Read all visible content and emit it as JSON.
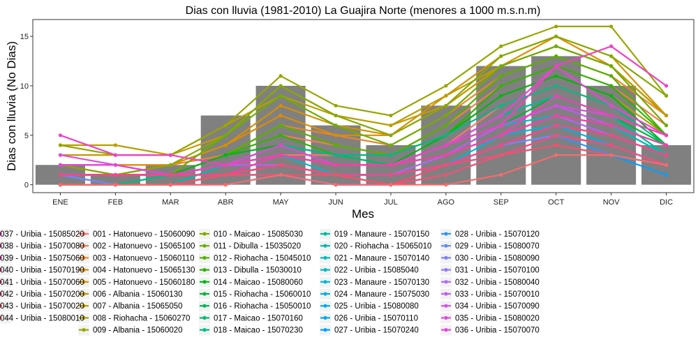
{
  "chart_data": {
    "type": "bar+line",
    "title": "Dias con lluvia (1981-2010) La Guajira Norte (menores a 1000 m.s.n.m)",
    "xlabel": "Mes",
    "ylabel": "Dias con lluvia (No Dias)",
    "categories": [
      "ENE",
      "FEB",
      "MAR",
      "ABR",
      "MAY",
      "JUN",
      "JUL",
      "AGO",
      "SEP",
      "OCT",
      "NOV",
      "DIC"
    ],
    "ylim": [
      -0.8,
      16.7
    ],
    "yticks": [
      "0",
      "5",
      "10",
      "15"
    ],
    "grid": false,
    "legend_position": "bottom",
    "bar_color": "#808080",
    "bars": [
      2,
      1,
      2,
      7,
      10,
      6,
      4,
      8,
      12,
      13,
      10,
      4
    ],
    "series": [
      {
        "name": "001 - Hatonuevo - 15060090",
        "color": "#F8766D",
        "values": [
          1,
          1,
          1,
          2,
          3,
          3,
          2,
          4,
          8,
          10,
          8,
          5
        ]
      },
      {
        "name": "002 - Hatonuevo - 15065100",
        "color": "#F07E4F",
        "values": [
          2,
          2,
          2,
          3,
          5,
          4,
          3,
          6,
          10,
          12,
          10,
          6
        ]
      },
      {
        "name": "003 - Hatonuevo - 15060110",
        "color": "#E8852B",
        "values": [
          1,
          1,
          2,
          3,
          6,
          5,
          4,
          7,
          11,
          13,
          11,
          7
        ]
      },
      {
        "name": "004 - Hatonuevo - 15065130",
        "color": "#DF8C00",
        "values": [
          2,
          2,
          2,
          4,
          7,
          5,
          5,
          8,
          12,
          15,
          12,
          7
        ]
      },
      {
        "name": "005 - Hatonuevo - 15060180",
        "color": "#D29200",
        "values": [
          1,
          1,
          2,
          4,
          8,
          6,
          5,
          9,
          13,
          15,
          13,
          7
        ]
      },
      {
        "name": "006 - Albania - 15060130",
        "color": "#C69800",
        "values": [
          3,
          3,
          3,
          5,
          10,
          7,
          6,
          8,
          12,
          14,
          12,
          7
        ]
      },
      {
        "name": "007 - Albania - 15065050",
        "color": "#B89E00",
        "values": [
          4,
          4,
          3,
          6,
          9,
          7,
          6,
          9,
          12,
          14,
          12,
          7
        ]
      },
      {
        "name": "008 - Riohacha - 15060270",
        "color": "#A8A200",
        "values": [
          2,
          1,
          1,
          3,
          6,
          4,
          3,
          5,
          9,
          11,
          9,
          5
        ]
      },
      {
        "name": "009 - Albania - 15060020",
        "color": "#97A600",
        "values": [
          4,
          3,
          3,
          6,
          11,
          8,
          7,
          10,
          14,
          16,
          16,
          9
        ]
      },
      {
        "name": "010 - Maicao - 15085030",
        "color": "#84AA00",
        "values": [
          2,
          1,
          2,
          5,
          10,
          7,
          5,
          8,
          13,
          15,
          13,
          9
        ]
      },
      {
        "name": "011 - Dibulla - 15035020",
        "color": "#6EAD00",
        "values": [
          1,
          1,
          1,
          5,
          9,
          6,
          4,
          7,
          12,
          14,
          12,
          6
        ]
      },
      {
        "name": "012 - Riohacha - 15045010",
        "color": "#55B000",
        "values": [
          1,
          1,
          1,
          3,
          6,
          4,
          3,
          6,
          11,
          13,
          11,
          5
        ]
      },
      {
        "name": "013 - Dibulla - 15030010",
        "color": "#2EB300",
        "values": [
          1,
          1,
          1,
          3,
          5,
          3,
          3,
          5,
          10,
          12,
          10,
          5
        ]
      },
      {
        "name": "014 - Maicao - 15080060",
        "color": "#00B513",
        "values": [
          1,
          1,
          1,
          3,
          4,
          3,
          2,
          5,
          9,
          11,
          9,
          4
        ]
      },
      {
        "name": "015 - Riohacha - 15060010",
        "color": "#00B63A",
        "values": [
          0,
          0,
          0,
          2,
          4,
          2,
          2,
          4,
          6,
          9,
          7,
          4
        ]
      },
      {
        "name": "016 - Riohacha - 15050010",
        "color": "#00B757",
        "values": [
          1,
          1,
          1,
          2,
          3,
          2,
          2,
          3,
          6,
          8,
          6,
          3
        ]
      },
      {
        "name": "017 - Maicao - 15070160",
        "color": "#00B86F",
        "values": [
          0,
          0,
          1,
          2,
          4,
          3,
          2,
          4,
          7,
          9,
          7,
          3
        ]
      },
      {
        "name": "018 - Maicao - 15070230",
        "color": "#00B985",
        "values": [
          1,
          0,
          1,
          2,
          4,
          3,
          3,
          5,
          8,
          10,
          8,
          4
        ]
      },
      {
        "name": "019 - Manaure - 15070150",
        "color": "#00BA99",
        "values": [
          1,
          1,
          1,
          2,
          3,
          2,
          2,
          4,
          7,
          9,
          7,
          3
        ]
      },
      {
        "name": "020 - Riohacha - 15065010",
        "color": "#00BAAB",
        "values": [
          0,
          0,
          0,
          2,
          4,
          2,
          2,
          3,
          6,
          8,
          6,
          4
        ]
      },
      {
        "name": "021 - Manaure - 15070140",
        "color": "#00BABB",
        "values": [
          1,
          1,
          1,
          2,
          3,
          2,
          2,
          3,
          6,
          7,
          6,
          3
        ]
      },
      {
        "name": "022 - Uribia - 15085040",
        "color": "#00B8CA",
        "values": [
          0,
          0,
          0,
          1,
          3,
          1,
          1,
          3,
          5,
          7,
          5,
          3
        ]
      },
      {
        "name": "023 - Manaure - 15070130",
        "color": "#00B5D7",
        "values": [
          1,
          0,
          0,
          1,
          2,
          1,
          1,
          2,
          5,
          6,
          5,
          3
        ]
      },
      {
        "name": "024 - Manaure - 15075030",
        "color": "#00B1E3",
        "values": [
          0,
          0,
          0,
          1,
          2,
          1,
          1,
          2,
          4,
          6,
          4,
          2
        ]
      },
      {
        "name": "025 - Uribia - 15080080",
        "color": "#00ACEE",
        "values": [
          0,
          0,
          0,
          1,
          2,
          1,
          1,
          2,
          4,
          5,
          4,
          2
        ]
      },
      {
        "name": "026 - Uribia - 15070110",
        "color": "#00A6F7",
        "values": [
          0,
          0,
          0,
          1,
          1,
          0,
          0,
          1,
          3,
          5,
          4,
          2
        ]
      },
      {
        "name": "027 - Uribia - 15070240",
        "color": "#009FFF",
        "values": [
          0,
          0,
          0,
          1,
          1,
          1,
          0,
          1,
          3,
          4,
          3,
          1
        ]
      },
      {
        "name": "028 - Uribia - 15070120",
        "color": "#2D96FF",
        "values": [
          0,
          0,
          0,
          1,
          2,
          1,
          1,
          2,
          3,
          5,
          3,
          2
        ]
      },
      {
        "name": "029 - Uribia - 15080070",
        "color": "#5B8CFF",
        "values": [
          0,
          0,
          0,
          0,
          1,
          0,
          0,
          1,
          3,
          4,
          3,
          2
        ]
      },
      {
        "name": "030 - Uribia - 15080090",
        "color": "#7C81FF",
        "values": [
          1,
          0,
          0,
          1,
          2,
          1,
          1,
          2,
          4,
          5,
          4,
          2
        ]
      },
      {
        "name": "031 - Uribia - 15070100",
        "color": "#9775FF",
        "values": [
          1,
          1,
          1,
          1,
          2,
          1,
          1,
          2,
          4,
          6,
          5,
          3
        ]
      },
      {
        "name": "032 - Uribia - 15080040",
        "color": "#AE69FF",
        "values": [
          0,
          0,
          0,
          1,
          1,
          0,
          0,
          1,
          3,
          5,
          4,
          2
        ]
      },
      {
        "name": "033 - Uribia - 15070010",
        "color": "#C05DF8",
        "values": [
          1,
          1,
          1,
          2,
          2,
          1,
          1,
          3,
          5,
          7,
          5,
          3
        ]
      },
      {
        "name": "034 - Uribia - 15070090",
        "color": "#D053EF",
        "values": [
          2,
          2,
          1,
          2,
          3,
          2,
          2,
          3,
          6,
          8,
          6,
          4
        ]
      },
      {
        "name": "035 - Uribia - 15080020",
        "color": "#DD4BE3",
        "values": [
          3,
          2,
          1,
          2,
          3,
          2,
          2,
          4,
          6,
          8,
          7,
          5
        ]
      },
      {
        "name": "036 - Uribia - 15070070",
        "color": "#E745D6",
        "values": [
          2,
          2,
          1,
          2,
          4,
          2,
          2,
          4,
          7,
          12,
          8,
          5
        ]
      },
      {
        "name": "037 - Uribia - 15085020",
        "color": "#EF41C7",
        "values": [
          5,
          3,
          3,
          2,
          3,
          2,
          2,
          4,
          6,
          12,
          14,
          10
        ]
      },
      {
        "name": "038 - Uribia - 15070080",
        "color": "#F53FB7",
        "values": [
          1,
          1,
          1,
          2,
          3,
          2,
          2,
          3,
          5,
          9,
          7,
          5
        ]
      },
      {
        "name": "039 - Uribia - 15075060",
        "color": "#F83FA6",
        "values": [
          1,
          1,
          1,
          1,
          3,
          2,
          2,
          3,
          5,
          7,
          6,
          4
        ]
      },
      {
        "name": "040 - Uribia - 15070190",
        "color": "#FA4195",
        "values": [
          0,
          0,
          0,
          1,
          2,
          1,
          1,
          2,
          4,
          6,
          5,
          3
        ]
      },
      {
        "name": "041 - Uribia - 15070060",
        "color": "#FB4584",
        "values": [
          1,
          1,
          1,
          1,
          2,
          1,
          1,
          2,
          4,
          6,
          5,
          3
        ]
      },
      {
        "name": "042 - Uribia - 15070200",
        "color": "#FB4A74",
        "values": [
          0,
          0,
          0,
          1,
          2,
          1,
          0,
          2,
          3,
          5,
          4,
          2
        ]
      },
      {
        "name": "043 - Uribia - 15070020",
        "color": "#FA5065",
        "values": [
          0,
          0,
          0,
          1,
          1,
          1,
          0,
          1,
          3,
          4,
          3,
          2
        ]
      },
      {
        "name": "044 - Uribia - 15080010",
        "color": "#F76B6B",
        "values": [
          0,
          0,
          0,
          0,
          1,
          0,
          0,
          0,
          1,
          3,
          3,
          2
        ]
      }
    ]
  }
}
